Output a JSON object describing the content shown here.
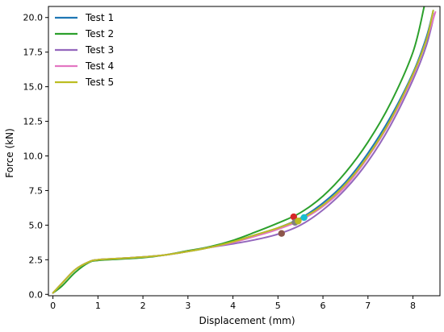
{
  "chart_data": {
    "type": "line",
    "title": "",
    "xlabel": "Displacement (mm)",
    "ylabel": "Force (kN)",
    "xlim": [
      -0.1,
      8.6
    ],
    "ylim": [
      -0.1,
      20.8
    ],
    "x_ticks": [
      0,
      1,
      2,
      3,
      4,
      5,
      6,
      7,
      8
    ],
    "y_ticks": [
      0.0,
      2.5,
      5.0,
      7.5,
      10.0,
      12.5,
      15.0,
      17.5,
      20.0
    ],
    "x_tick_labels": [
      "0",
      "1",
      "2",
      "3",
      "4",
      "5",
      "6",
      "7",
      "8"
    ],
    "y_tick_labels": [
      "0.0",
      "2.5",
      "5.0",
      "7.5",
      "10.0",
      "12.5",
      "15.0",
      "17.5",
      "20.0"
    ],
    "grid": false,
    "legend_position": "top-left",
    "series": [
      {
        "name": "Test 1",
        "color": "#1f77b4",
        "x": [
          0,
          0.2,
          0.5,
          0.8,
          1.0,
          1.5,
          2.0,
          2.5,
          3.0,
          3.5,
          4.0,
          4.5,
          5.0,
          5.5,
          6.0,
          6.5,
          7.0,
          7.5,
          8.0,
          8.3,
          8.45
        ],
        "y": [
          0.1,
          0.8,
          1.8,
          2.35,
          2.5,
          2.6,
          2.7,
          2.85,
          3.1,
          3.4,
          3.8,
          4.3,
          4.8,
          5.5,
          6.6,
          8.1,
          10.2,
          12.8,
          16.0,
          18.6,
          20.5
        ],
        "marker": {
          "x": 5.58,
          "y": 5.55,
          "color": "#17becf"
        }
      },
      {
        "name": "Test 2",
        "color": "#2ca02c",
        "x": [
          0,
          0.2,
          0.5,
          0.8,
          1.0,
          1.5,
          2.0,
          2.5,
          3.0,
          3.5,
          4.0,
          4.5,
          5.0,
          5.5,
          6.0,
          6.5,
          7.0,
          7.5,
          8.0,
          8.25
        ],
        "y": [
          0.1,
          0.6,
          1.6,
          2.3,
          2.45,
          2.55,
          2.65,
          2.85,
          3.15,
          3.45,
          3.9,
          4.5,
          5.15,
          5.9,
          7.1,
          8.8,
          11.0,
          13.8,
          17.5,
          20.8
        ],
        "marker": {
          "x": 5.35,
          "y": 5.6,
          "color": "#d62728"
        }
      },
      {
        "name": "Test 3",
        "color": "#9467bd",
        "x": [
          0,
          0.2,
          0.5,
          0.8,
          1.0,
          1.5,
          2.0,
          2.5,
          3.0,
          3.5,
          4.0,
          4.5,
          5.0,
          5.5,
          6.0,
          6.5,
          7.0,
          7.5,
          8.0,
          8.3,
          8.48
        ],
        "y": [
          0.1,
          0.8,
          1.8,
          2.35,
          2.5,
          2.6,
          2.7,
          2.85,
          3.1,
          3.4,
          3.65,
          3.95,
          4.35,
          5.0,
          6.1,
          7.6,
          9.6,
          12.2,
          15.5,
          18.0,
          20.3
        ],
        "marker": {
          "x": 5.08,
          "y": 4.4,
          "color": "#8c564b"
        }
      },
      {
        "name": "Test 4",
        "color": "#e377c2",
        "x": [
          0,
          0.2,
          0.5,
          0.8,
          1.0,
          1.5,
          2.0,
          2.5,
          3.0,
          3.5,
          4.0,
          4.5,
          5.0,
          5.5,
          6.0,
          6.5,
          7.0,
          7.5,
          8.0,
          8.3,
          8.5
        ],
        "y": [
          0.1,
          0.8,
          1.8,
          2.35,
          2.5,
          2.6,
          2.7,
          2.85,
          3.1,
          3.4,
          3.75,
          4.2,
          4.7,
          5.35,
          6.35,
          7.8,
          9.9,
          12.5,
          15.8,
          18.4,
          20.4
        ],
        "marker": {
          "x": 5.38,
          "y": 5.2,
          "color": "#7f7f7f"
        }
      },
      {
        "name": "Test 5",
        "color": "#bcbd22",
        "x": [
          0,
          0.2,
          0.5,
          0.8,
          1.0,
          1.5,
          2.0,
          2.5,
          3.0,
          3.5,
          4.0,
          4.5,
          5.0,
          5.5,
          6.0,
          6.5,
          7.0,
          7.5,
          8.0,
          8.3,
          8.45
        ],
        "y": [
          0.1,
          0.8,
          1.8,
          2.35,
          2.5,
          2.6,
          2.7,
          2.85,
          3.1,
          3.4,
          3.8,
          4.3,
          4.8,
          5.45,
          6.45,
          7.95,
          10.0,
          12.6,
          15.9,
          18.4,
          20.5
        ],
        "marker": {
          "x": 5.45,
          "y": 5.3,
          "color": "#bcbd22"
        }
      }
    ]
  }
}
